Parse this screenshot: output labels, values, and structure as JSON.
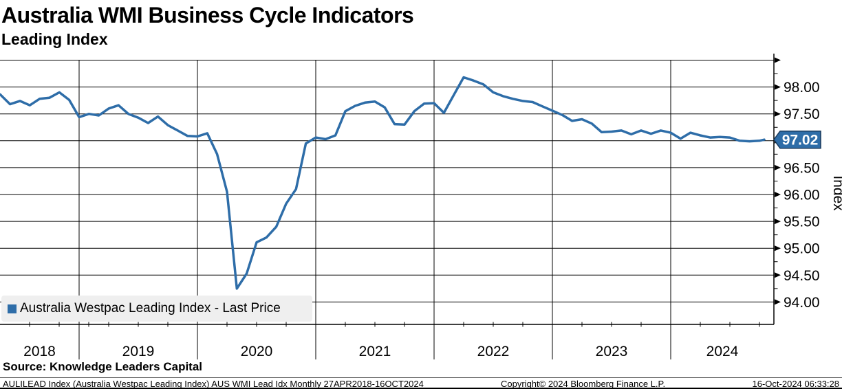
{
  "header": {
    "title": "Australia WMI Business Cycle Indicators",
    "subtitle": "Leading Index"
  },
  "legend": {
    "series_label": "Australia Westpac Leading Index - Last Price"
  },
  "colors": {
    "line": "#2e6da8",
    "tag_fill": "#2e6da8",
    "tag_border": "#1a3a5c",
    "tag_text": "#ffffff",
    "grid": "#000000",
    "legend_bg": "#efefef"
  },
  "y_axis": {
    "title": "Index",
    "major_ticks": [
      {
        "value": 98.5,
        "label": ""
      },
      {
        "value": 98.0,
        "label": "98.00"
      },
      {
        "value": 97.5,
        "label": "97.50"
      },
      {
        "value": 97.0,
        "label": ""
      },
      {
        "value": 96.5,
        "label": "96.50"
      },
      {
        "value": 96.0,
        "label": "96.00"
      },
      {
        "value": 95.5,
        "label": "95.50"
      },
      {
        "value": 95.0,
        "label": "95.00"
      },
      {
        "value": 94.5,
        "label": "94.50"
      },
      {
        "value": 94.0,
        "label": "94.00"
      }
    ],
    "minor_ticks": [
      94.25,
      94.75,
      95.25,
      95.75,
      96.25,
      96.75,
      97.25,
      97.75,
      98.25
    ],
    "last_price_tag": {
      "label": "97.02",
      "value": 97.02
    }
  },
  "x_axis": {
    "year_labels": [
      "2018",
      "2019",
      "2020",
      "2021",
      "2022",
      "2023",
      "2024"
    ]
  },
  "footer": {
    "source": "Source: Knowledge Leaders Capital",
    "description": "AULILEAD Index (Australia Westpac Leading Index) AUS WMI Lead Idx  Monthly 27APR2018-16OCT2024",
    "copyright": "Copyright© 2024 Bloomberg Finance L.P.",
    "timestamp": "16-Oct-2024 06:33:28"
  },
  "chart_data": {
    "type": "line",
    "title": "Australia WMI Business Cycle Indicators - Leading Index",
    "xlabel": "",
    "ylabel": "Index",
    "ylim": [
      93.75,
      98.6
    ],
    "grid": true,
    "legend_position": "bottom-left",
    "frequency": "Monthly",
    "date_range": "27APR2018-16OCT2024",
    "last_price": 97.02,
    "months": [
      "2018-04",
      "2018-05",
      "2018-06",
      "2018-07",
      "2018-08",
      "2018-09",
      "2018-10",
      "2018-11",
      "2018-12",
      "2019-01",
      "2019-02",
      "2019-03",
      "2019-04",
      "2019-05",
      "2019-06",
      "2019-07",
      "2019-08",
      "2019-09",
      "2019-10",
      "2019-11",
      "2019-12",
      "2020-01",
      "2020-02",
      "2020-03",
      "2020-04",
      "2020-05",
      "2020-06",
      "2020-07",
      "2020-08",
      "2020-09",
      "2020-10",
      "2020-11",
      "2020-12",
      "2021-01",
      "2021-02",
      "2021-03",
      "2021-04",
      "2021-05",
      "2021-06",
      "2021-07",
      "2021-08",
      "2021-09",
      "2021-10",
      "2021-11",
      "2021-12",
      "2022-01",
      "2022-02",
      "2022-03",
      "2022-04",
      "2022-05",
      "2022-06",
      "2022-07",
      "2022-08",
      "2022-09",
      "2022-10",
      "2022-11",
      "2022-12",
      "2023-01",
      "2023-02",
      "2023-03",
      "2023-04",
      "2023-05",
      "2023-06",
      "2023-07",
      "2023-08",
      "2023-09",
      "2023-10",
      "2023-11",
      "2023-12",
      "2024-01",
      "2024-02",
      "2024-03",
      "2024-04",
      "2024-05",
      "2024-06",
      "2024-07",
      "2024-08",
      "2024-09",
      "2024-10"
    ],
    "series": [
      {
        "name": "Australia Westpac Leading Index - Last Price",
        "color": "#2e6da8",
        "values": [
          97.86,
          97.68,
          97.74,
          97.66,
          97.78,
          97.8,
          97.9,
          97.76,
          97.44,
          97.5,
          97.47,
          97.6,
          97.66,
          97.5,
          97.43,
          97.33,
          97.45,
          97.29,
          97.19,
          97.09,
          97.08,
          97.14,
          96.75,
          96.05,
          94.25,
          94.53,
          95.11,
          95.2,
          95.4,
          95.83,
          96.1,
          96.95,
          97.06,
          97.03,
          97.1,
          97.55,
          97.65,
          97.71,
          97.73,
          97.62,
          97.31,
          97.3,
          97.55,
          97.69,
          97.7,
          97.52,
          97.85,
          98.18,
          98.12,
          98.05,
          97.9,
          97.83,
          97.78,
          97.74,
          97.72,
          97.64,
          97.56,
          97.48,
          97.37,
          97.4,
          97.32,
          97.16,
          97.17,
          97.19,
          97.12,
          97.19,
          97.13,
          97.19,
          97.15,
          97.04,
          97.15,
          97.1,
          97.06,
          97.07,
          97.06,
          97.0,
          96.99,
          97.0,
          97.02
        ]
      }
    ]
  }
}
